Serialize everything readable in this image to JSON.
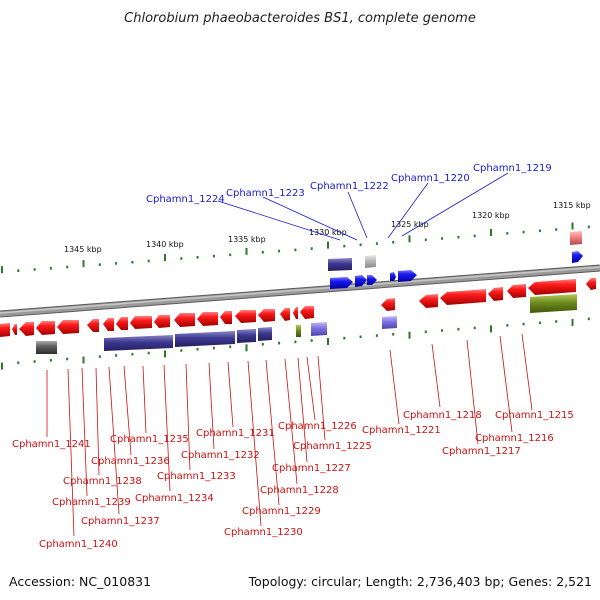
{
  "title": "Chlorobium phaeobacteroides BS1, complete genome",
  "footer": {
    "accession": "Accession: NC_010831",
    "summary": "Topology: circular; Length: 2,736,403 bp; Genes: 2,521"
  },
  "colors": {
    "forward_gene": "#1515ee",
    "reverse_gene": "#ee1515",
    "blue_label": "#1a1acc",
    "red_label": "#cc1111",
    "ruler_tick": "#2a7a2a",
    "backbone": "#8c8c8c"
  },
  "scale_labels": [
    "1345 kbp",
    "1340 kbp",
    "1335 kbp",
    "1330 kbp",
    "1325 kbp",
    "1320 kbp",
    "1315 kbp"
  ],
  "gene_labels_top": [
    "Cphamn1_1224",
    "Cphamn1_1223",
    "Cphamn1_1222",
    "Cphamn1_1220",
    "Cphamn1_1219"
  ],
  "gene_labels_bottom": [
    "Cphamn1_1241",
    "Cphamn1_1240",
    "Cphamn1_1239",
    "Cphamn1_1238",
    "Cphamn1_1237",
    "Cphamn1_1236",
    "Cphamn1_1235",
    "Cphamn1_1234",
    "Cphamn1_1233",
    "Cphamn1_1232",
    "Cphamn1_1231",
    "Cphamn1_1230",
    "Cphamn1_1229",
    "Cphamn1_1228",
    "Cphamn1_1227",
    "Cphamn1_1226",
    "Cphamn1_1225",
    "Cphamn1_1221",
    "Cphamn1_1218",
    "Cphamn1_1217",
    "Cphamn1_1216",
    "Cphamn1_1215"
  ]
}
